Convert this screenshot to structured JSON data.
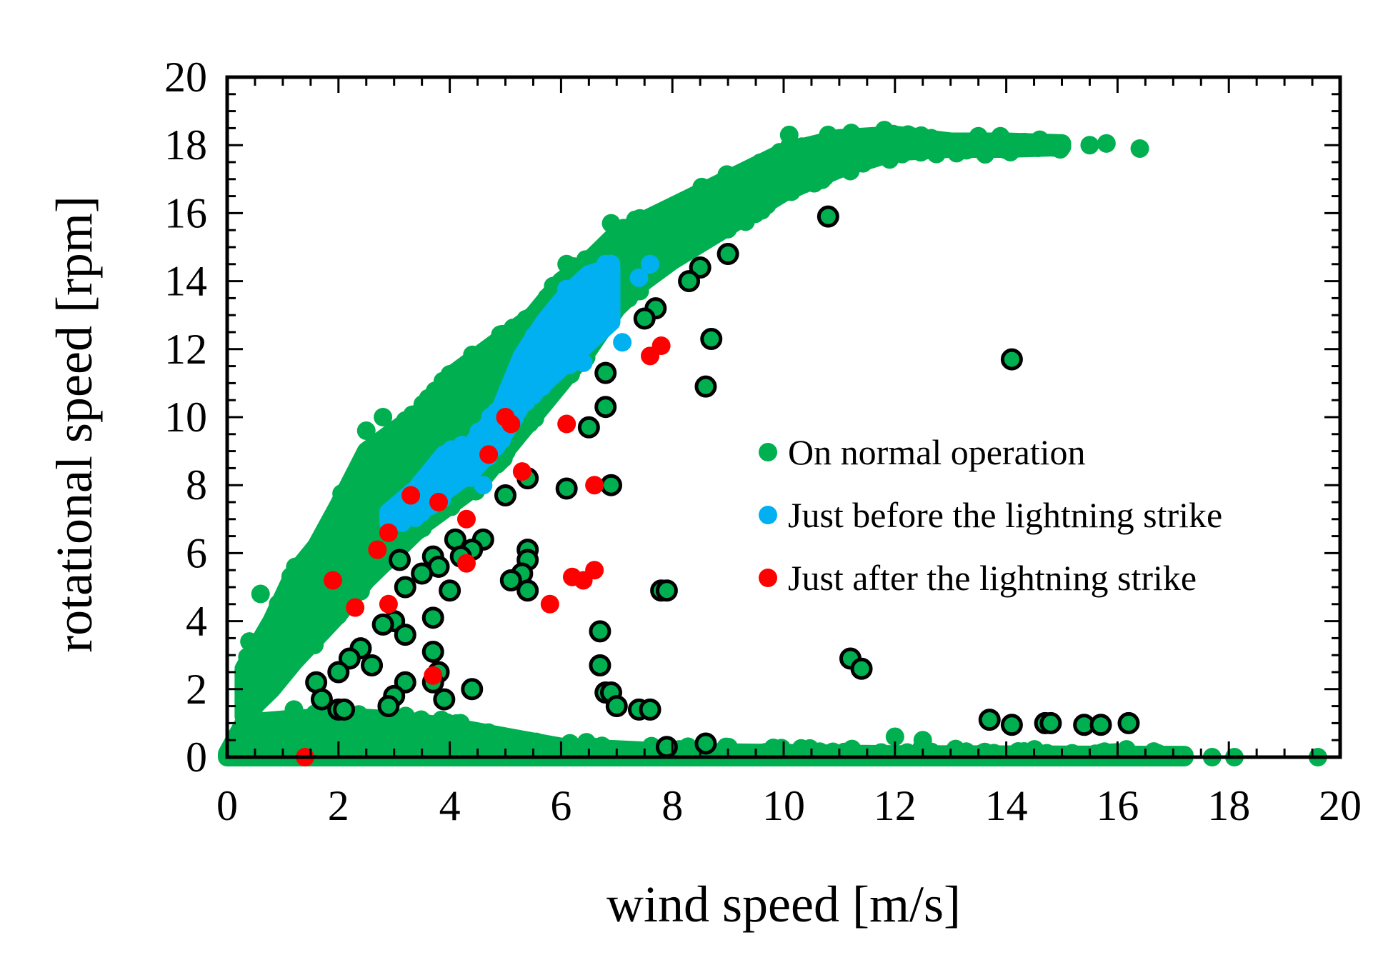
{
  "colors": {
    "normal": "#00b050",
    "before": "#00b0f0",
    "after": "#ff0000",
    "outline": "#000000",
    "axis": "#000000"
  },
  "chart_data": {
    "type": "scatter",
    "title": "",
    "xlabel": "wind speed [m/s]",
    "ylabel": "rotational speed [rpm]",
    "xlim": [
      0,
      20
    ],
    "ylim": [
      0,
      20
    ],
    "xticks": [
      0,
      2,
      4,
      6,
      8,
      10,
      12,
      14,
      16,
      18,
      20
    ],
    "yticks": [
      0,
      2,
      4,
      6,
      8,
      10,
      12,
      14,
      16,
      18,
      20
    ],
    "xtick_labels": [
      "0",
      "2",
      "4",
      "6",
      "8",
      "10",
      "12",
      "14",
      "16",
      "18",
      "20"
    ],
    "ytick_labels": [
      "0",
      "2",
      "4",
      "6",
      "8",
      "10",
      "12",
      "14",
      "16",
      "18",
      "20"
    ],
    "grid": false,
    "legend_position": "right",
    "legend": [
      {
        "key": "normal",
        "label": "On normal operation"
      },
      {
        "key": "before",
        "label": "Just before the lightning strike"
      },
      {
        "key": "after",
        "label": "Just after the lightning strike"
      }
    ],
    "series": [
      {
        "name": "On normal operation (main curve band)",
        "key": "normal",
        "style": "band",
        "band": [
          {
            "x": 0.3,
            "lo": 1.2,
            "hi": 2.6
          },
          {
            "x": 0.8,
            "lo": 2.0,
            "hi": 4.0
          },
          {
            "x": 1.2,
            "lo": 2.8,
            "hi": 5.4
          },
          {
            "x": 1.6,
            "lo": 3.5,
            "hi": 6.2
          },
          {
            "x": 2.0,
            "lo": 4.2,
            "hi": 7.4
          },
          {
            "x": 2.5,
            "lo": 5.2,
            "hi": 9.0
          },
          {
            "x": 3.0,
            "lo": 6.0,
            "hi": 9.6
          },
          {
            "x": 3.5,
            "lo": 6.8,
            "hi": 10.2
          },
          {
            "x": 4.0,
            "lo": 7.4,
            "hi": 11.2
          },
          {
            "x": 4.5,
            "lo": 8.0,
            "hi": 11.8
          },
          {
            "x": 5.0,
            "lo": 9.0,
            "hi": 12.4
          },
          {
            "x": 5.5,
            "lo": 10.0,
            "hi": 13.0
          },
          {
            "x": 6.0,
            "lo": 11.0,
            "hi": 14.0
          },
          {
            "x": 6.5,
            "lo": 12.0,
            "hi": 14.6
          },
          {
            "x": 7.0,
            "lo": 13.2,
            "hi": 15.4
          },
          {
            "x": 7.5,
            "lo": 14.0,
            "hi": 15.8
          },
          {
            "x": 8.0,
            "lo": 14.6,
            "hi": 16.2
          },
          {
            "x": 9.0,
            "lo": 15.6,
            "hi": 17.0
          },
          {
            "x": 10.0,
            "lo": 16.6,
            "hi": 17.8
          },
          {
            "x": 11.0,
            "lo": 17.3,
            "hi": 18.2
          },
          {
            "x": 12.0,
            "lo": 17.8,
            "hi": 18.3
          },
          {
            "x": 13.0,
            "lo": 17.9,
            "hi": 18.1
          },
          {
            "x": 14.0,
            "lo": 17.9,
            "hi": 18.1
          },
          {
            "x": 15.0,
            "lo": 17.95,
            "hi": 18.05
          }
        ],
        "points": [
          {
            "x": 15.5,
            "y": 18.0
          },
          {
            "x": 15.8,
            "y": 18.05
          },
          {
            "x": 16.4,
            "y": 17.9
          },
          {
            "x": 6.1,
            "y": 14.5
          },
          {
            "x": 2.5,
            "y": 9.6
          },
          {
            "x": 2.8,
            "y": 10.0
          },
          {
            "x": 3.2,
            "y": 9.9
          },
          {
            "x": 0.6,
            "y": 4.8
          },
          {
            "x": 0.4,
            "y": 3.4
          },
          {
            "x": 0.3,
            "y": 2.4
          },
          {
            "x": 1.9,
            "y": 4.7
          },
          {
            "x": 6.9,
            "y": 15.7
          },
          {
            "x": 9.3,
            "y": 17.2
          },
          {
            "x": 10.1,
            "y": 18.3
          },
          {
            "x": 10.8,
            "y": 18.3
          }
        ]
      },
      {
        "name": "On normal operation (near-zero band)",
        "key": "normal",
        "style": "band",
        "band": [
          {
            "x": 0.0,
            "lo": 0.0,
            "hi": 0.1
          },
          {
            "x": 0.3,
            "lo": 0.0,
            "hi": 1.0
          },
          {
            "x": 1.0,
            "lo": 0.0,
            "hi": 1.1
          },
          {
            "x": 2.0,
            "lo": 0.0,
            "hi": 1.2
          },
          {
            "x": 3.0,
            "lo": 0.0,
            "hi": 1.1
          },
          {
            "x": 4.0,
            "lo": 0.0,
            "hi": 0.9
          },
          {
            "x": 5.0,
            "lo": 0.0,
            "hi": 0.6
          },
          {
            "x": 6.0,
            "lo": 0.0,
            "hi": 0.3
          },
          {
            "x": 8.0,
            "lo": 0.0,
            "hi": 0.15
          },
          {
            "x": 12.0,
            "lo": 0.0,
            "hi": 0.08
          },
          {
            "x": 17.2,
            "lo": 0.0,
            "hi": 0.06
          }
        ],
        "points": [
          {
            "x": 0.5,
            "y": 1.5
          },
          {
            "x": 1.2,
            "y": 1.4
          },
          {
            "x": 12.0,
            "y": 0.6
          },
          {
            "x": 12.5,
            "y": 0.5
          },
          {
            "x": 17.7,
            "y": 0.0
          },
          {
            "x": 18.1,
            "y": 0.0
          },
          {
            "x": 19.6,
            "y": 0.0
          },
          {
            "x": 6.6,
            "y": 0.3
          }
        ]
      },
      {
        "name": "Just before the lightning strike (band)",
        "key": "before",
        "style": "band",
        "band": [
          {
            "x": 2.9,
            "lo": 6.9,
            "hi": 7.2
          },
          {
            "x": 3.4,
            "lo": 7.2,
            "hi": 7.9
          },
          {
            "x": 3.9,
            "lo": 7.8,
            "hi": 8.9
          },
          {
            "x": 4.4,
            "lo": 8.4,
            "hi": 9.2
          },
          {
            "x": 4.9,
            "lo": 9.3,
            "hi": 10.2
          },
          {
            "x": 5.3,
            "lo": 10.4,
            "hi": 11.8
          },
          {
            "x": 5.7,
            "lo": 11.0,
            "hi": 12.8
          },
          {
            "x": 6.1,
            "lo": 11.6,
            "hi": 13.6
          },
          {
            "x": 6.5,
            "lo": 12.2,
            "hi": 14.2
          },
          {
            "x": 6.9,
            "lo": 12.8,
            "hi": 14.4
          }
        ],
        "points": [
          {
            "x": 7.6,
            "y": 14.5
          },
          {
            "x": 7.4,
            "y": 14.1
          },
          {
            "x": 7.1,
            "y": 12.2
          },
          {
            "x": 6.4,
            "y": 11.6
          },
          {
            "x": 6.8,
            "y": 14.5
          },
          {
            "x": 4.0,
            "y": 8.6
          },
          {
            "x": 4.8,
            "y": 9.8
          },
          {
            "x": 4.6,
            "y": 8.0
          },
          {
            "x": 5.2,
            "y": 10.6
          },
          {
            "x": 3.5,
            "y": 7.2
          }
        ]
      },
      {
        "name": "Just after the lightning strike (outlined green)",
        "key": "normal",
        "outlined": true,
        "points": [
          {
            "x": 10.8,
            "y": 15.9
          },
          {
            "x": 9.0,
            "y": 14.8
          },
          {
            "x": 8.5,
            "y": 14.4
          },
          {
            "x": 8.3,
            "y": 14.0
          },
          {
            "x": 7.7,
            "y": 13.2
          },
          {
            "x": 7.5,
            "y": 12.9
          },
          {
            "x": 8.7,
            "y": 12.3
          },
          {
            "x": 14.1,
            "y": 11.7
          },
          {
            "x": 6.8,
            "y": 11.3
          },
          {
            "x": 8.6,
            "y": 10.9
          },
          {
            "x": 6.8,
            "y": 10.3
          },
          {
            "x": 6.5,
            "y": 9.7
          },
          {
            "x": 5.4,
            "y": 8.2
          },
          {
            "x": 6.9,
            "y": 8.0
          },
          {
            "x": 6.1,
            "y": 7.9
          },
          {
            "x": 5.0,
            "y": 7.7
          },
          {
            "x": 4.6,
            "y": 6.4
          },
          {
            "x": 4.1,
            "y": 6.4
          },
          {
            "x": 4.4,
            "y": 6.1
          },
          {
            "x": 5.4,
            "y": 6.1
          },
          {
            "x": 3.7,
            "y": 5.9
          },
          {
            "x": 4.2,
            "y": 5.9
          },
          {
            "x": 3.1,
            "y": 5.8
          },
          {
            "x": 5.4,
            "y": 5.8
          },
          {
            "x": 3.8,
            "y": 5.6
          },
          {
            "x": 3.5,
            "y": 5.4
          },
          {
            "x": 5.3,
            "y": 5.4
          },
          {
            "x": 5.1,
            "y": 5.2
          },
          {
            "x": 3.2,
            "y": 5.0
          },
          {
            "x": 4.0,
            "y": 4.9
          },
          {
            "x": 5.4,
            "y": 4.9
          },
          {
            "x": 7.8,
            "y": 4.9
          },
          {
            "x": 7.9,
            "y": 4.9
          },
          {
            "x": 3.7,
            "y": 4.1
          },
          {
            "x": 3.0,
            "y": 4.0
          },
          {
            "x": 2.8,
            "y": 3.9
          },
          {
            "x": 6.7,
            "y": 3.7
          },
          {
            "x": 3.2,
            "y": 3.6
          },
          {
            "x": 11.2,
            "y": 2.9
          },
          {
            "x": 2.4,
            "y": 3.2
          },
          {
            "x": 3.7,
            "y": 3.1
          },
          {
            "x": 2.2,
            "y": 2.9
          },
          {
            "x": 2.6,
            "y": 2.7
          },
          {
            "x": 6.7,
            "y": 2.7
          },
          {
            "x": 11.4,
            "y": 2.6
          },
          {
            "x": 2.0,
            "y": 2.5
          },
          {
            "x": 3.8,
            "y": 2.5
          },
          {
            "x": 1.6,
            "y": 2.2
          },
          {
            "x": 3.2,
            "y": 2.2
          },
          {
            "x": 3.7,
            "y": 2.2
          },
          {
            "x": 4.4,
            "y": 2.0
          },
          {
            "x": 6.8,
            "y": 1.9
          },
          {
            "x": 6.9,
            "y": 1.9
          },
          {
            "x": 3.0,
            "y": 1.8
          },
          {
            "x": 1.7,
            "y": 1.7
          },
          {
            "x": 3.9,
            "y": 1.7
          },
          {
            "x": 7.0,
            "y": 1.5
          },
          {
            "x": 2.9,
            "y": 1.5
          },
          {
            "x": 2.0,
            "y": 1.4
          },
          {
            "x": 2.1,
            "y": 1.4
          },
          {
            "x": 7.4,
            "y": 1.4
          },
          {
            "x": 7.6,
            "y": 1.4
          },
          {
            "x": 13.7,
            "y": 1.1
          },
          {
            "x": 14.1,
            "y": 0.95
          },
          {
            "x": 14.7,
            "y": 1.0
          },
          {
            "x": 14.8,
            "y": 1.0
          },
          {
            "x": 15.4,
            "y": 0.95
          },
          {
            "x": 15.7,
            "y": 0.95
          },
          {
            "x": 16.2,
            "y": 1.0
          },
          {
            "x": 8.6,
            "y": 0.4
          },
          {
            "x": 7.9,
            "y": 0.3
          }
        ]
      },
      {
        "name": "Just after the lightning strike (red)",
        "key": "after",
        "outlined": false,
        "points": [
          {
            "x": 5.0,
            "y": 10.0
          },
          {
            "x": 5.1,
            "y": 9.8
          },
          {
            "x": 6.1,
            "y": 9.8
          },
          {
            "x": 4.7,
            "y": 8.9
          },
          {
            "x": 5.3,
            "y": 8.4
          },
          {
            "x": 6.6,
            "y": 8.0
          },
          {
            "x": 3.3,
            "y": 7.7
          },
          {
            "x": 3.8,
            "y": 7.5
          },
          {
            "x": 4.3,
            "y": 7.0
          },
          {
            "x": 2.9,
            "y": 6.6
          },
          {
            "x": 2.7,
            "y": 6.1
          },
          {
            "x": 4.3,
            "y": 5.7
          },
          {
            "x": 6.6,
            "y": 5.5
          },
          {
            "x": 6.2,
            "y": 5.3
          },
          {
            "x": 6.4,
            "y": 5.2
          },
          {
            "x": 1.9,
            "y": 5.2
          },
          {
            "x": 5.8,
            "y": 4.5
          },
          {
            "x": 2.9,
            "y": 4.5
          },
          {
            "x": 2.3,
            "y": 4.4
          },
          {
            "x": 3.7,
            "y": 2.4
          },
          {
            "x": 1.4,
            "y": 0.0
          },
          {
            "x": 7.6,
            "y": 11.8
          },
          {
            "x": 7.8,
            "y": 12.1
          }
        ]
      }
    ]
  }
}
